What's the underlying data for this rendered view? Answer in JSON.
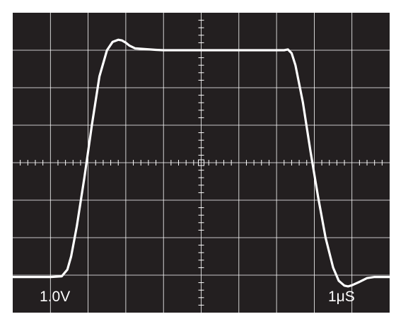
{
  "chart_data": {
    "type": "line",
    "title": "",
    "xlabel": "",
    "ylabel": "",
    "volts_per_div_label": "1.0V",
    "time_per_div_label": "1μS",
    "divisions": {
      "x": 10,
      "y": 8
    },
    "x_unit": "div",
    "y_unit": "div",
    "xlim": [
      -5,
      5
    ],
    "ylim": [
      -4,
      4
    ],
    "grid": true,
    "colors": {
      "background": "#231f20",
      "grid": "#ffffff",
      "trace": "#ffffff",
      "frame": "#ffffff"
    },
    "series": [
      {
        "x": [
          -5.0,
          -4.0,
          -3.7,
          -3.55,
          -3.45,
          -3.3,
          -3.1,
          -2.9,
          -2.7,
          -2.5,
          -2.35,
          -2.2,
          -2.1,
          -2.0,
          -1.9,
          -1.75,
          -1.5,
          -1.2,
          -1.0,
          0.0,
          1.0,
          2.0,
          2.2,
          2.3,
          2.4,
          2.5,
          2.7,
          2.9,
          3.1,
          3.3,
          3.5,
          3.65,
          3.8,
          3.9,
          4.0,
          4.2,
          4.4,
          4.6,
          5.0
        ],
        "y": [
          -3.05,
          -3.05,
          -3.03,
          -2.85,
          -2.5,
          -1.7,
          -0.4,
          1.0,
          2.3,
          3.0,
          3.22,
          3.28,
          3.26,
          3.2,
          3.12,
          3.05,
          3.03,
          3.01,
          3.0,
          3.0,
          3.0,
          3.0,
          3.0,
          3.02,
          2.92,
          2.6,
          1.6,
          0.3,
          -0.9,
          -2.0,
          -2.8,
          -3.15,
          -3.28,
          -3.3,
          -3.27,
          -3.18,
          -3.08,
          -3.05,
          -3.05
        ]
      }
    ]
  }
}
